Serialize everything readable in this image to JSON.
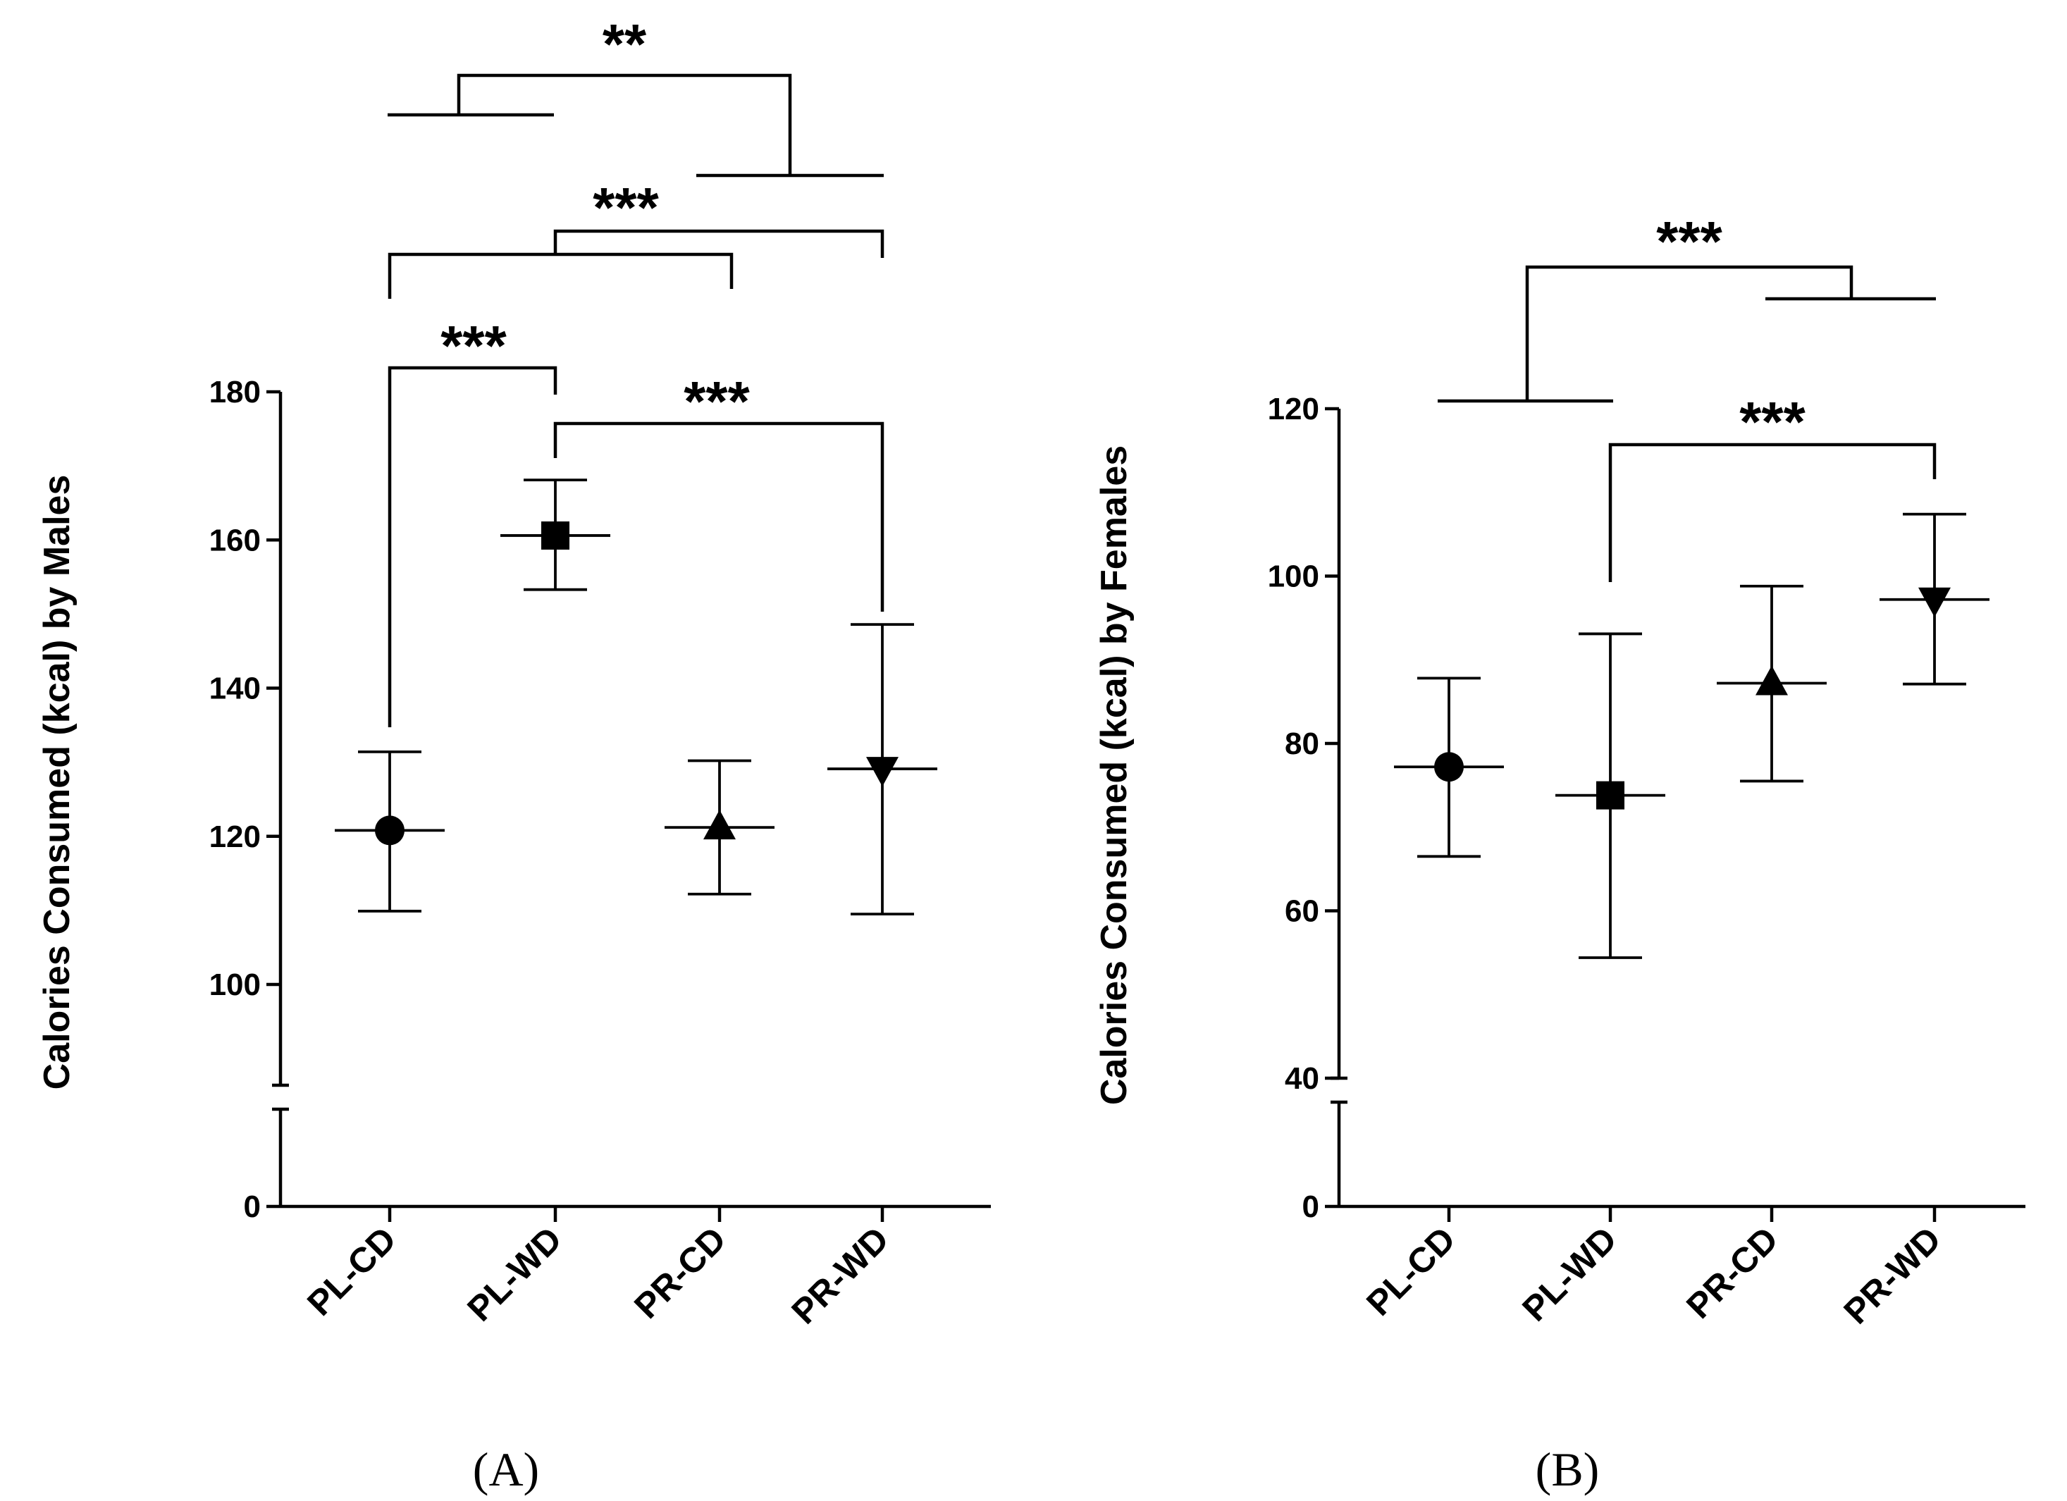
{
  "chart_data": [
    {
      "type": "scatter",
      "panel": "A",
      "panel_label": "(A)",
      "ylabel": "Calories Consumed (kcal) by Males",
      "categories": [
        "PL-CD",
        "PL-WD",
        "PR-CD",
        "PR-WD"
      ],
      "markers": [
        "circle",
        "square",
        "triangle-up",
        "triangle-down"
      ],
      "means": [
        120.8,
        160.6,
        121.2,
        129.1
      ],
      "err_low": [
        109.9,
        153.3,
        112.2,
        109.5
      ],
      "err_high": [
        131.4,
        168.1,
        130.2,
        148.6
      ],
      "axis_break": true,
      "lower_segment_ticks": [
        0
      ],
      "yticks": [
        100,
        120,
        140,
        160,
        180
      ],
      "ylim_upper": [
        87.5,
        180
      ],
      "significance": [
        {
          "groups": [
            "PL-CD",
            "PL-WD"
          ],
          "label": "***"
        },
        {
          "groups": [
            "PL-WD",
            "PR-WD"
          ],
          "label": "***"
        },
        {
          "groups": [
            "PL-CD",
            "PR-CD"
          ],
          "compared_with": [
            "PL-WD",
            "PR-WD"
          ],
          "label": "***"
        },
        {
          "groups": [
            "PL-CD",
            "PL-WD"
          ],
          "compared_with": [
            "PR-CD",
            "PR-WD"
          ],
          "label": "**"
        }
      ]
    },
    {
      "type": "scatter",
      "panel": "B",
      "panel_label": "(B)",
      "ylabel": "Calories Consumed (kcal) by Females",
      "categories": [
        "PL-CD",
        "PL-WD",
        "PR-CD",
        "PR-WD"
      ],
      "markers": [
        "circle",
        "square",
        "triangle-up",
        "triangle-down"
      ],
      "means": [
        77.2,
        73.8,
        87.2,
        97.2
      ],
      "err_low": [
        66.5,
        54.4,
        75.5,
        87.1
      ],
      "err_high": [
        87.8,
        93.1,
        98.8,
        107.4
      ],
      "axis_break": true,
      "lower_segment_ticks": [
        0
      ],
      "yticks": [
        40,
        60,
        80,
        100,
        120
      ],
      "ylim_upper": [
        40,
        120
      ],
      "significance": [
        {
          "groups": [
            "PL-WD",
            "PR-WD"
          ],
          "label": "***"
        },
        {
          "groups": [
            "PL-CD",
            "PL-WD"
          ],
          "compared_with": [
            "PR-CD",
            "PR-WD"
          ],
          "label": "***"
        }
      ]
    }
  ]
}
